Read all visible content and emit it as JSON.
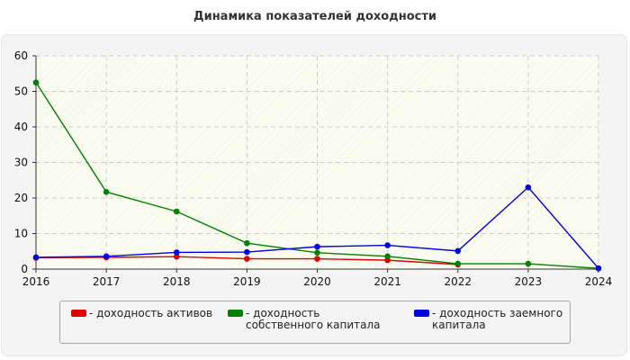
{
  "chart_data": {
    "type": "line",
    "title": "Динамика показателей доходности",
    "xlabel": "",
    "ylabel": "",
    "x": [
      "2016",
      "2017",
      "2018",
      "2019",
      "2020",
      "2021",
      "2022",
      "2023",
      "2024"
    ],
    "ylim": [
      0,
      60
    ],
    "yticks": [
      0,
      10,
      20,
      30,
      40,
      50,
      60
    ],
    "grid": true,
    "legend_position": "bottom",
    "series": [
      {
        "name": "- доходность активов",
        "color": "#e00000",
        "values": [
          3.2,
          3.3,
          3.5,
          2.9,
          2.9,
          2.5,
          1.3,
          null,
          null
        ]
      },
      {
        "name": "- доходность собственного капитала",
        "color": "#008000",
        "values": [
          52.5,
          21.7,
          16.2,
          7.3,
          4.6,
          3.6,
          1.5,
          1.5,
          0.2
        ]
      },
      {
        "name": "- доходность заемного капитала",
        "color": "#0000dd",
        "values": [
          3.3,
          3.6,
          4.7,
          4.8,
          6.3,
          6.7,
          5.1,
          23.0,
          0.2
        ]
      }
    ]
  }
}
